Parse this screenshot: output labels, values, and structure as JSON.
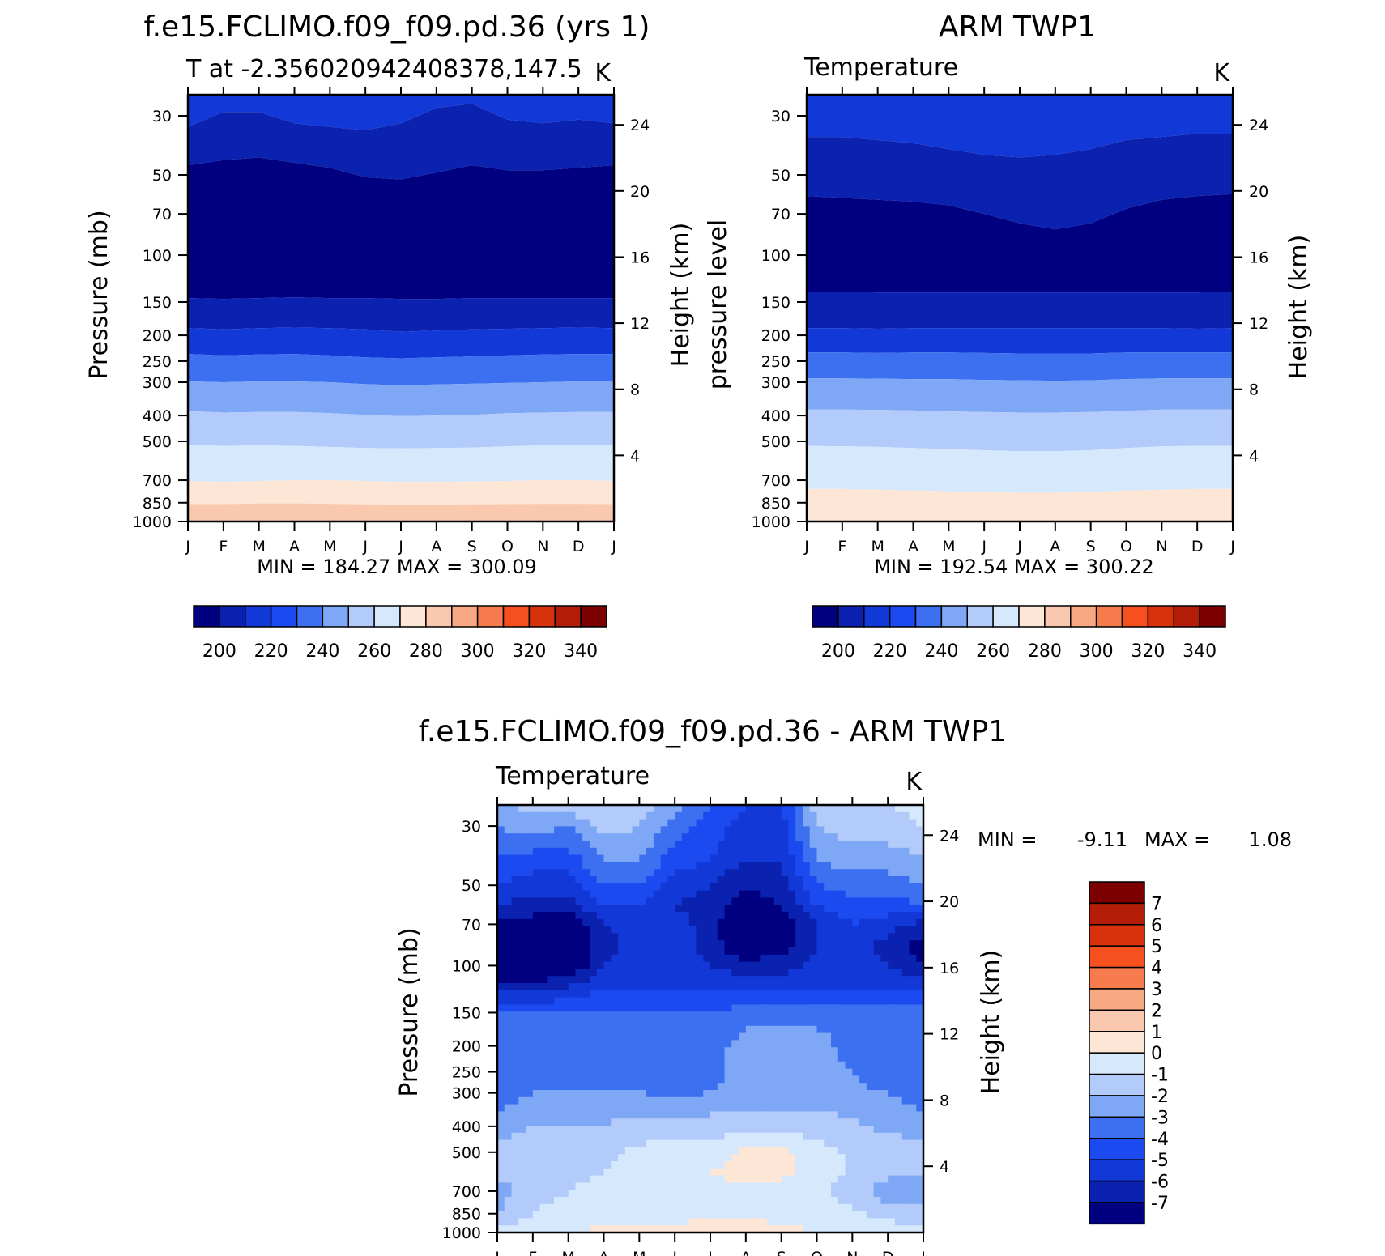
{
  "colors": {
    "model_levels": [
      "#000080",
      "#0b22b0",
      "#1338d8",
      "#1a4af0",
      "#3c70f0",
      "#7ea8f6",
      "#b2cbfa",
      "#d6e8fc",
      "#fde6d6",
      "#fac8ae",
      "#f8a882",
      "#f67c4e",
      "#f6501e",
      "#d8320c",
      "#b41e08",
      "#7c0000"
    ],
    "diff_levels": [
      "#7c0000",
      "#b41e08",
      "#d8320c",
      "#f6501e",
      "#f67c4e",
      "#f8a882",
      "#fac8ae",
      "#fde6d6",
      "#d6e8fc",
      "#b2cbfa",
      "#7ea8f6",
      "#3c70f0",
      "#1a4af0",
      "#1338d8",
      "#0b22b0",
      "#000080"
    ]
  },
  "chart_data": [
    {
      "type": "heatmap",
      "title": "f.e15.FCLIMO.f09_f09.pd.36 (yrs 1)",
      "subtitle_left": "T at -2.356020942408378,147.5",
      "units": "K",
      "xlabel": "",
      "ylabel": "Pressure (mb)",
      "y2label": "Height (km)",
      "x_ticks": [
        "J",
        "F",
        "M",
        "A",
        "M",
        "J",
        "J",
        "A",
        "S",
        "O",
        "N",
        "D",
        "J"
      ],
      "y_ticks": [
        30,
        50,
        70,
        100,
        150,
        200,
        250,
        300,
        400,
        500,
        700,
        850,
        1000
      ],
      "y2_ticks": [
        24,
        20,
        16,
        12,
        8,
        4
      ],
      "ylim": [
        1000,
        25
      ],
      "stats": "MIN = 184.27 MAX = 300.09",
      "colorbar_ticks": [
        200,
        220,
        240,
        260,
        280,
        300,
        320,
        340
      ],
      "contour_boundaries_mb": [
        [
          33,
          29,
          29,
          32,
          33,
          34,
          32,
          28,
          27,
          31,
          32,
          31,
          32
        ],
        [
          46,
          44,
          43,
          45,
          47,
          51,
          52,
          49,
          46,
          48,
          48,
          47,
          46
        ],
        [
          145,
          146,
          145,
          144,
          145,
          145,
          146,
          146,
          145,
          145,
          145,
          145,
          145
        ],
        [
          188,
          190,
          188,
          187,
          188,
          190,
          194,
          192,
          190,
          189,
          188,
          187,
          188
        ],
        [
          235,
          238,
          236,
          235,
          238,
          242,
          244,
          242,
          240,
          238,
          236,
          235,
          235
        ],
        [
          298,
          300,
          298,
          298,
          300,
          305,
          308,
          306,
          304,
          302,
          300,
          298,
          298
        ],
        [
          385,
          390,
          388,
          388,
          392,
          398,
          402,
          400,
          398,
          392,
          390,
          388,
          388
        ],
        [
          515,
          520,
          518,
          520,
          525,
          530,
          532,
          530,
          528,
          522,
          518,
          515,
          515
        ],
        [
          705,
          710,
          705,
          700,
          700,
          705,
          710,
          710,
          708,
          705,
          700,
          700,
          705
        ],
        [
          860,
          860,
          855,
          855,
          858,
          862,
          865,
          865,
          862,
          860,
          858,
          858,
          860
        ]
      ]
    },
    {
      "type": "heatmap",
      "title": "ARM TWP1",
      "subtitle_left": "Temperature",
      "units": "K",
      "xlabel": "",
      "ylabel": "pressure level",
      "y2label": "Height (km)",
      "x_ticks": [
        "J",
        "F",
        "M",
        "A",
        "M",
        "J",
        "J",
        "A",
        "S",
        "O",
        "N",
        "D",
        "J"
      ],
      "y_ticks": [
        30,
        50,
        70,
        100,
        150,
        200,
        250,
        300,
        400,
        500,
        700,
        850,
        1000
      ],
      "y2_ticks": [
        24,
        20,
        16,
        12,
        8,
        4
      ],
      "ylim": [
        1000,
        25
      ],
      "stats": "MIN = 192.54 MAX = 300.22",
      "colorbar_ticks": [
        200,
        220,
        240,
        260,
        280,
        300,
        320,
        340
      ],
      "contour_boundaries_mb": [
        [
          36,
          36,
          37,
          38,
          40,
          42,
          43,
          42,
          40,
          37,
          36,
          35,
          35
        ],
        [
          60,
          61,
          62,
          63,
          65,
          70,
          76,
          80,
          76,
          67,
          62,
          60,
          59
        ],
        [
          137,
          137,
          138,
          138,
          138,
          138,
          138,
          138,
          138,
          138,
          138,
          138,
          137
        ],
        [
          188,
          188,
          189,
          188,
          188,
          188,
          188,
          188,
          188,
          188,
          188,
          189,
          188
        ],
        [
          232,
          232,
          233,
          232,
          232,
          233,
          234,
          234,
          234,
          232,
          232,
          232,
          232
        ],
        [
          290,
          290,
          291,
          292,
          292,
          294,
          295,
          296,
          295,
          292,
          290,
          290,
          290
        ],
        [
          380,
          380,
          381,
          383,
          386,
          388,
          390,
          390,
          388,
          384,
          380,
          380,
          380
        ],
        [
          520,
          522,
          525,
          530,
          535,
          540,
          545,
          545,
          540,
          530,
          522,
          520,
          520
        ],
        [
          755,
          755,
          760,
          765,
          770,
          775,
          780,
          780,
          775,
          765,
          760,
          755,
          755
        ]
      ]
    },
    {
      "type": "heatmap",
      "title": "f.e15.FCLIMO.f09_f09.pd.36 - ARM TWP1",
      "subtitle_left": "Temperature",
      "units": "K",
      "xlabel": "",
      "ylabel": "Pressure (mb)",
      "y2label": "Height (km)",
      "x_ticks": [
        "J",
        "F",
        "M",
        "A",
        "M",
        "J",
        "J",
        "A",
        "S",
        "O",
        "N",
        "D",
        "J"
      ],
      "y_ticks": [
        30,
        50,
        70,
        100,
        150,
        200,
        250,
        300,
        400,
        500,
        700,
        850,
        1000
      ],
      "y2_ticks": [
        24,
        20,
        16,
        12,
        8,
        4
      ],
      "ylim": [
        1000,
        25
      ],
      "stats_min_label": "MIN =",
      "stats_min": "-9.11",
      "stats_max_label": "MAX =",
      "stats_max": "1.08",
      "colorbar_labels": [
        "7",
        "6",
        "5",
        "4",
        "3",
        "2",
        "1",
        "0",
        "-1",
        "-2",
        "-3",
        "-4",
        "-5",
        "-6",
        "-7"
      ],
      "x_nodes": [
        0,
        1,
        2,
        3,
        4,
        5,
        6,
        7,
        8,
        9,
        10,
        11,
        12
      ],
      "p_nodes": [
        25,
        30,
        40,
        50,
        60,
        70,
        85,
        100,
        120,
        150,
        200,
        250,
        300,
        400,
        500,
        600,
        700,
        850,
        1000
      ],
      "values": [
        [
          -2.5,
          -1.5,
          -1.5,
          -1,
          -1.5,
          -2.5,
          -4,
          -5,
          -5,
          -1.5,
          -1,
          -1,
          -0.5
        ],
        [
          -3,
          -2.5,
          -3,
          -1.5,
          -2,
          -3.5,
          -4.5,
          -5.5,
          -5.5,
          -2,
          -1.5,
          -1.5,
          -1
        ],
        [
          -4,
          -4.5,
          -4.5,
          -3,
          -3,
          -4.5,
          -5,
          -6,
          -6,
          -3,
          -2.5,
          -2.5,
          -2
        ],
        [
          -5,
          -5.5,
          -5.5,
          -4,
          -4,
          -5.5,
          -6,
          -7,
          -6.5,
          -4,
          -3.5,
          -3.5,
          -3
        ],
        [
          -6,
          -6.5,
          -6.5,
          -5,
          -5,
          -6,
          -6.5,
          -7.5,
          -7,
          -5,
          -4.5,
          -4.5,
          -4
        ],
        [
          -7.5,
          -7.5,
          -8,
          -6,
          -5.5,
          -5.5,
          -6.5,
          -8.5,
          -8,
          -6,
          -5,
          -5.5,
          -6.5
        ],
        [
          -8,
          -8,
          -8,
          -6.5,
          -5.5,
          -5.5,
          -6.5,
          -8,
          -7.5,
          -6,
          -5.5,
          -6.5,
          -7.5
        ],
        [
          -8.5,
          -8.5,
          -8,
          -6,
          -5.5,
          -5.5,
          -6,
          -6.5,
          -6.5,
          -5.5,
          -5.5,
          -6,
          -7
        ],
        [
          -6.5,
          -6.5,
          -6,
          -5,
          -5,
          -5,
          -5,
          -5.5,
          -5.5,
          -5,
          -5,
          -5,
          -5.5
        ],
        [
          -4,
          -4,
          -4,
          -4,
          -4,
          -4,
          -4,
          -3.5,
          -3.5,
          -3.5,
          -3.5,
          -3.5,
          -3.5
        ],
        [
          -3.5,
          -3.5,
          -3.5,
          -3.5,
          -3.5,
          -3.5,
          -3.5,
          -2.5,
          -2.5,
          -2.5,
          -3.5,
          -3.5,
          -3.5
        ],
        [
          -3.5,
          -3.5,
          -3.5,
          -3.5,
          -3.5,
          -3.5,
          -3.5,
          -2.5,
          -2.5,
          -2.5,
          -3,
          -3.5,
          -3.5
        ],
        [
          -3.5,
          -3,
          -3,
          -3,
          -3,
          -3.2,
          -3,
          -2.5,
          -2.5,
          -2.5,
          -2.8,
          -3,
          -3.5
        ],
        [
          -2.5,
          -2,
          -2,
          -2,
          -1.5,
          -1.5,
          -1.5,
          -1.5,
          -1.5,
          -1.5,
          -1.8,
          -2.2,
          -2.5
        ],
        [
          -1.5,
          -1.5,
          -1.2,
          -1.2,
          -0.8,
          -0.5,
          -0.5,
          0.3,
          0.3,
          -0.5,
          -1.2,
          -1.5,
          -1.5
        ],
        [
          -1.5,
          -1.5,
          -1.2,
          -1,
          -0.5,
          -0.5,
          0,
          0.5,
          0.3,
          -0.5,
          -1.2,
          -1.8,
          -2
        ],
        [
          -2.5,
          -1.5,
          -1,
          -0.8,
          -0.5,
          -0.5,
          -0.5,
          -0.5,
          -0.5,
          -0.8,
          -1.5,
          -2.5,
          -2.5
        ],
        [
          -2,
          -1,
          -0.5,
          -0.5,
          -0.5,
          -0.3,
          -0.3,
          -0.3,
          -0.3,
          -0.5,
          -0.8,
          -1.5,
          -1.5
        ],
        [
          -0.5,
          -0.2,
          0,
          0.2,
          0.3,
          0.3,
          0.5,
          0.5,
          0.3,
          0,
          -0.2,
          -0.3,
          -0.5
        ]
      ]
    }
  ]
}
